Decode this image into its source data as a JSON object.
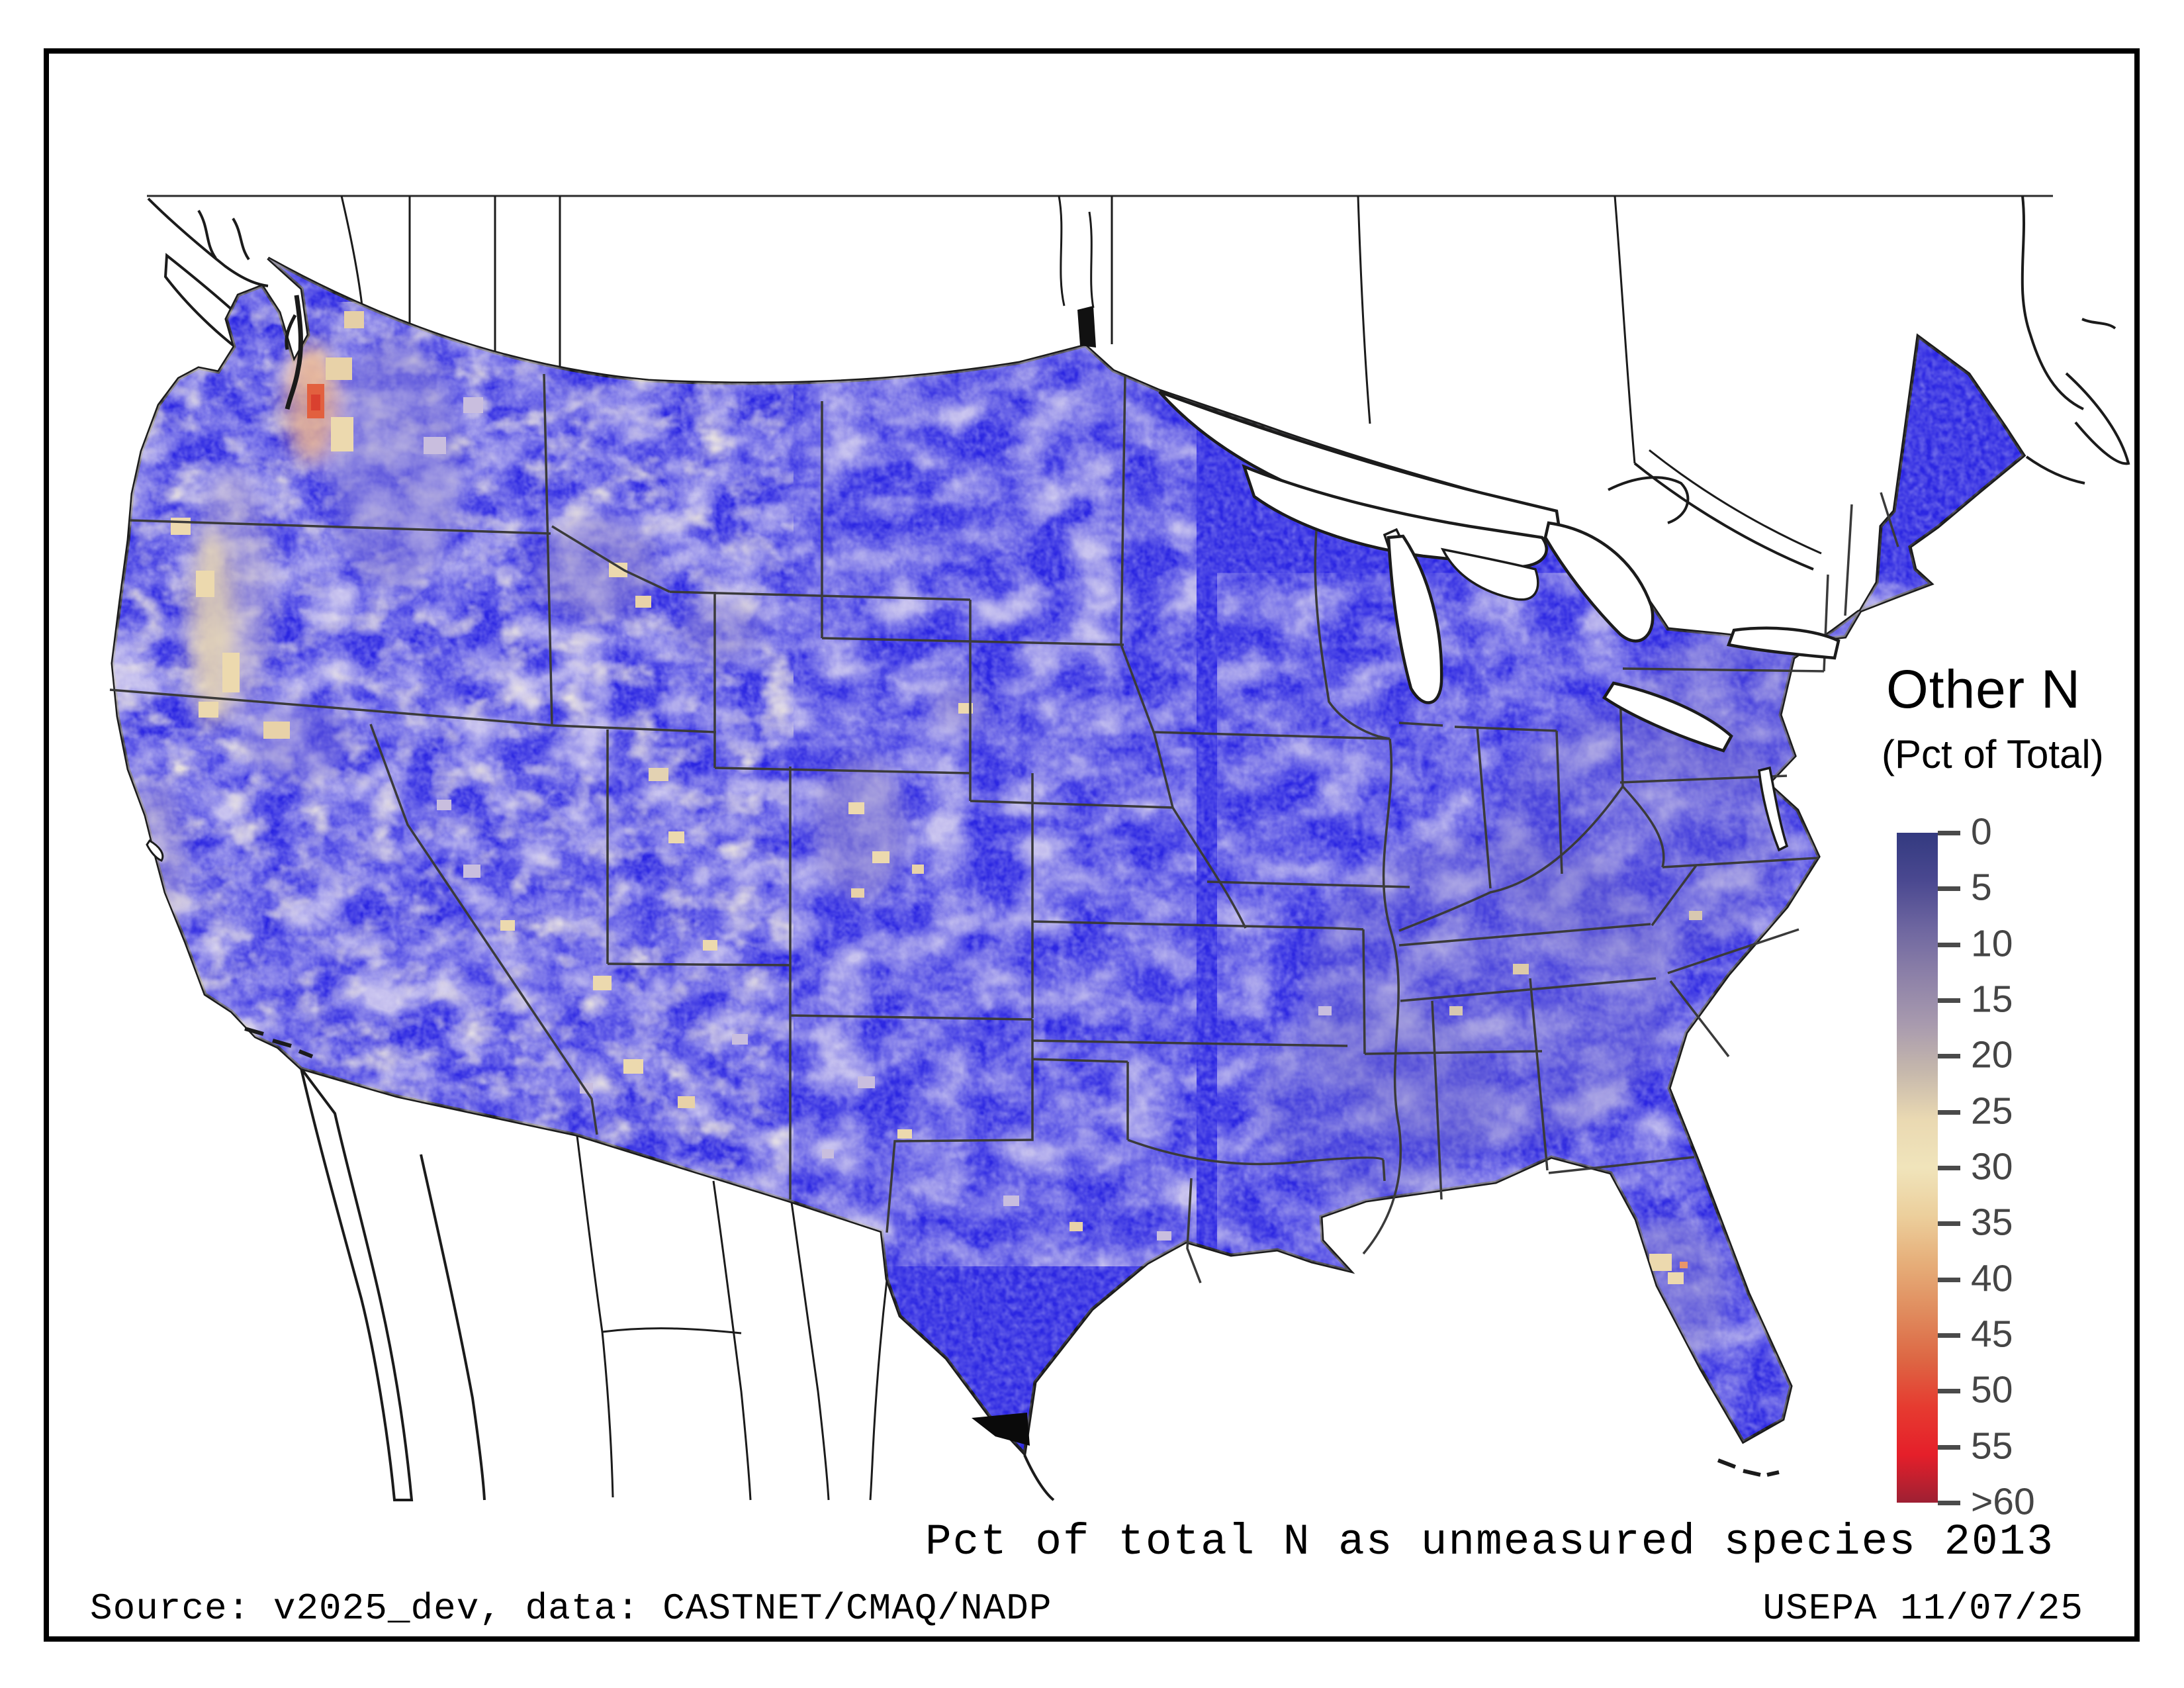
{
  "legend": {
    "title": "Other N",
    "subtitle": "(Pct of Total)",
    "ticks": [
      "0",
      "5",
      "10",
      "15",
      "20",
      "25",
      "30",
      "35",
      "40",
      "45",
      "50",
      "55",
      ">60"
    ],
    "gradient": [
      "#333a80",
      "#4a4890",
      "#6e66a0",
      "#8d81a8",
      "#a89aae",
      "#c6b8ac",
      "#ead9b2",
      "#f0e4bb",
      "#eccf9c",
      "#e6ae79",
      "#e08c5e",
      "#dd6744",
      "#e63b30",
      "#e51f2a",
      "#9e2033"
    ],
    "tick_mark_color": "#4a4a4a",
    "label_color": "#454545"
  },
  "footer": {
    "title": "Pct of total N as unmeasured species 2013",
    "source": "Source: v2025_dev, data: CASTNET/CMAQ/NADP",
    "agency": "USEPA 11/07/25"
  },
  "map": {
    "year": "2013",
    "colors": {
      "base_fill": "#2b26e2",
      "land_outline": "#1b1b1b",
      "state_border": "#3a3a3a",
      "water_fill": "#ffffff",
      "missing_data": "#0a0a0a",
      "hotspot_cream": "#ecd9ae",
      "hotspot_salmon": "#e2603f",
      "frame_color": "#000000"
    }
  }
}
